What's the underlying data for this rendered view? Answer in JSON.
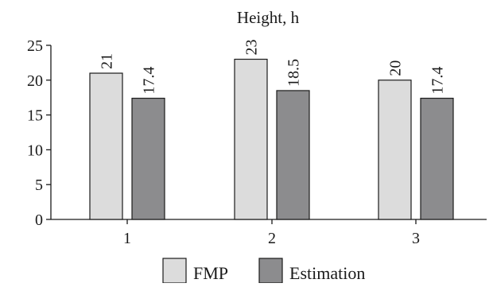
{
  "chart_data": {
    "type": "bar",
    "title": "Height, h",
    "xlabel": "",
    "ylabel": "",
    "categories": [
      "1",
      "2",
      "3"
    ],
    "series": [
      {
        "name": "FMP",
        "values": [
          21,
          23,
          20
        ],
        "labels": [
          "21",
          "23",
          "20"
        ],
        "color": "#dcdcdc"
      },
      {
        "name": "Estimation",
        "values": [
          17.4,
          18.5,
          17.4
        ],
        "labels": [
          "17.4",
          "18.5",
          "17.4"
        ],
        "color": "#8c8c8e"
      }
    ],
    "ylim": [
      0,
      25
    ],
    "yticks": [
      0,
      5,
      10,
      15,
      20,
      25
    ],
    "ytick_labels": [
      "0",
      "5",
      "10",
      "15",
      "20",
      "25"
    ],
    "grid": false,
    "legend_position": "bottom-center"
  }
}
